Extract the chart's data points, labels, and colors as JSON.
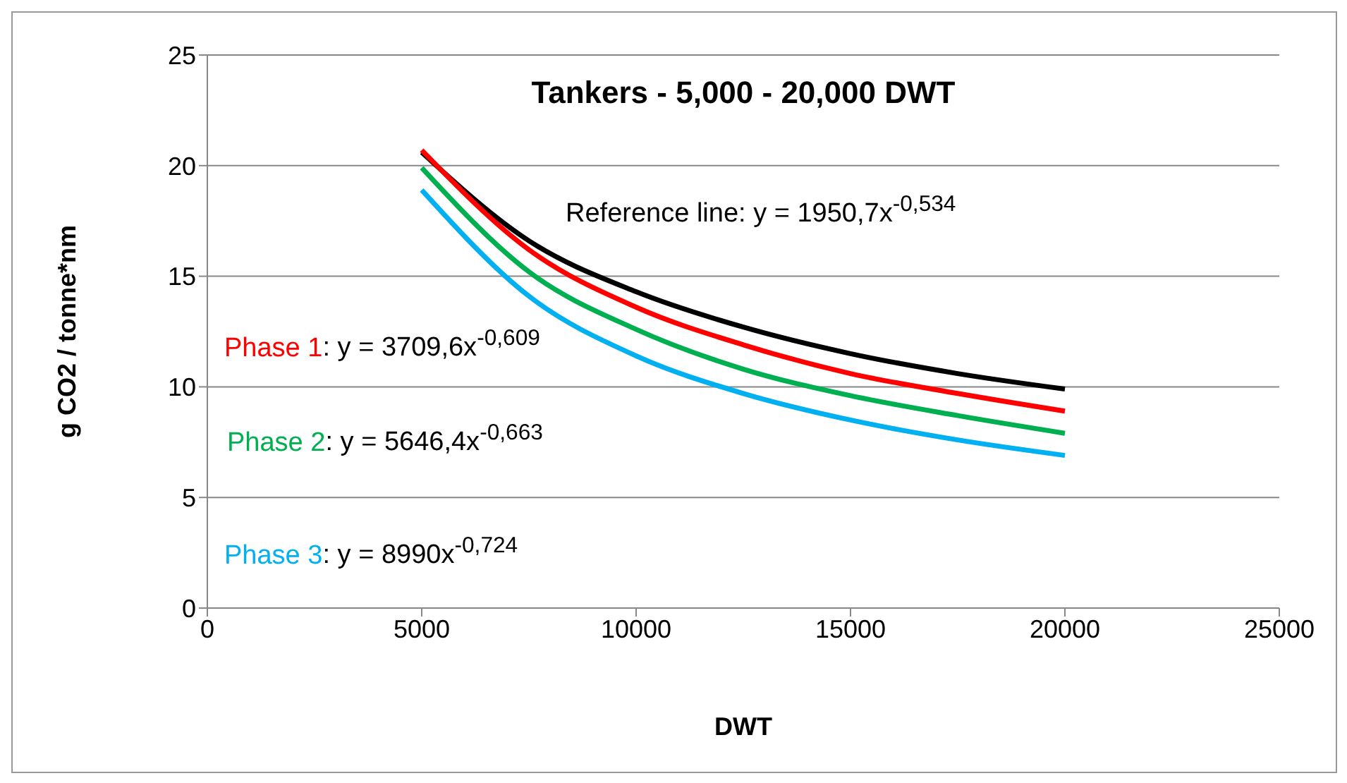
{
  "chart_data": {
    "type": "line",
    "title": "Tankers - 5,000 - 20,000 DWT",
    "xlabel": "DWT",
    "ylabel": "g CO2 / tonne*nm",
    "x": [
      5000,
      7500,
      10000,
      12500,
      15000,
      17500,
      20000
    ],
    "series": [
      {
        "color": "#000000",
        "values": [
          20.6,
          16.6,
          14.3,
          12.7,
          11.5,
          10.6,
          9.9
        ]
      },
      {
        "name": "Phase 1",
        "color": "#ff0000",
        "values": [
          20.7,
          16.2,
          13.6,
          11.9,
          10.6,
          9.7,
          8.9
        ]
      },
      {
        "name": "Phase 2",
        "color": "#00b050",
        "values": [
          19.9,
          15.2,
          12.6,
          10.8,
          9.6,
          8.7,
          7.9
        ]
      },
      {
        "name": "Phase 3",
        "color": "#00b0f0",
        "values": [
          18.9,
          14.1,
          11.4,
          9.7,
          8.5,
          7.6,
          6.9
        ]
      }
    ],
    "annotations": [
      "Reference line: y = 1950,7x$^{-0,534}$",
      ": y = 3709,6x$^{-0,609}$",
      ": y = 5646,4x$^{-0,663}$",
      ": y = 8990x$^{-0,724}$"
    ],
    "xlim": [
      0,
      25000
    ],
    "xticks": [
      0,
      5000,
      10000,
      15000,
      20000,
      25000
    ],
    "ylim": [
      0,
      25
    ],
    "yticks": [
      0,
      5,
      10,
      15,
      20,
      25
    ],
    "grid": "y",
    "legend": false,
    "marker": "none",
    "line_style": "solid"
  }
}
